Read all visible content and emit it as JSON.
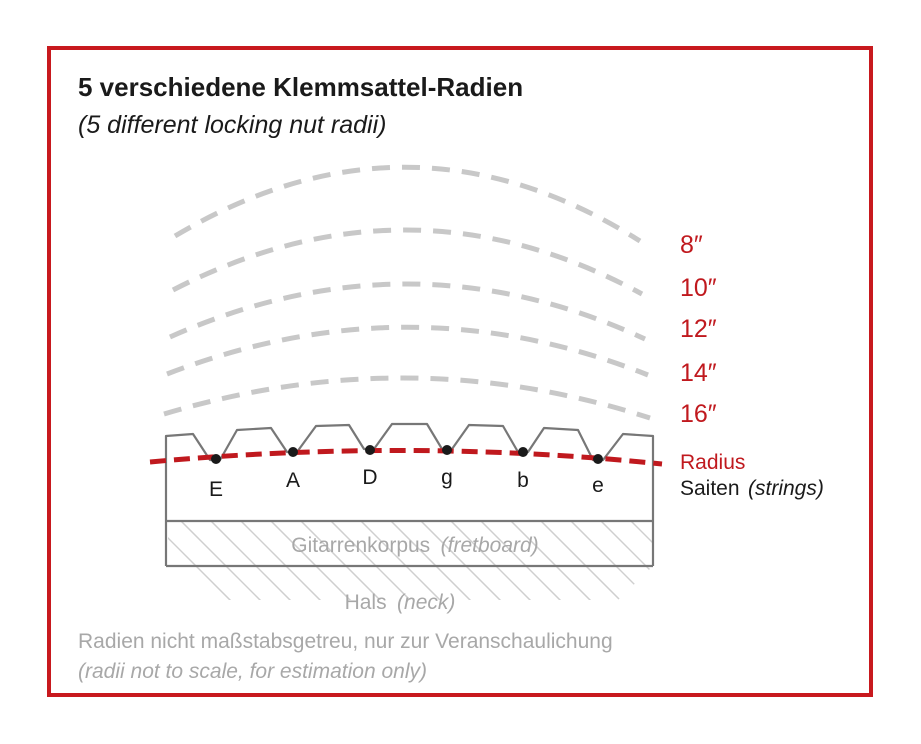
{
  "title": "5 verschiedene Klemmsattel-Radien",
  "subtitle": "(5 different locking nut radii)",
  "radius_labels": [
    "8″",
    "10″",
    "12″",
    "14″",
    "16″"
  ],
  "strings": [
    "E",
    "A",
    "D",
    "g",
    "b",
    "e"
  ],
  "legend": {
    "radius": "Radius",
    "saiten": "Saiten",
    "strings": "(strings)"
  },
  "fretboard": {
    "label": "Gitarrenkorpus",
    "label_en": "(fretboard)"
  },
  "neck": {
    "label": "Hals",
    "label_en": "(neck)"
  },
  "note": {
    "de": "Radien nicht maßstabsgetreu, nur zur Veranschaulichung",
    "en": "(radii not to scale, for estimation only)"
  },
  "colors": {
    "frame": "#c8191e",
    "radius_line": "#c0191e",
    "arcs": "#c8c8c8",
    "outline": "#777777",
    "hatch": "#cfcfcf"
  }
}
